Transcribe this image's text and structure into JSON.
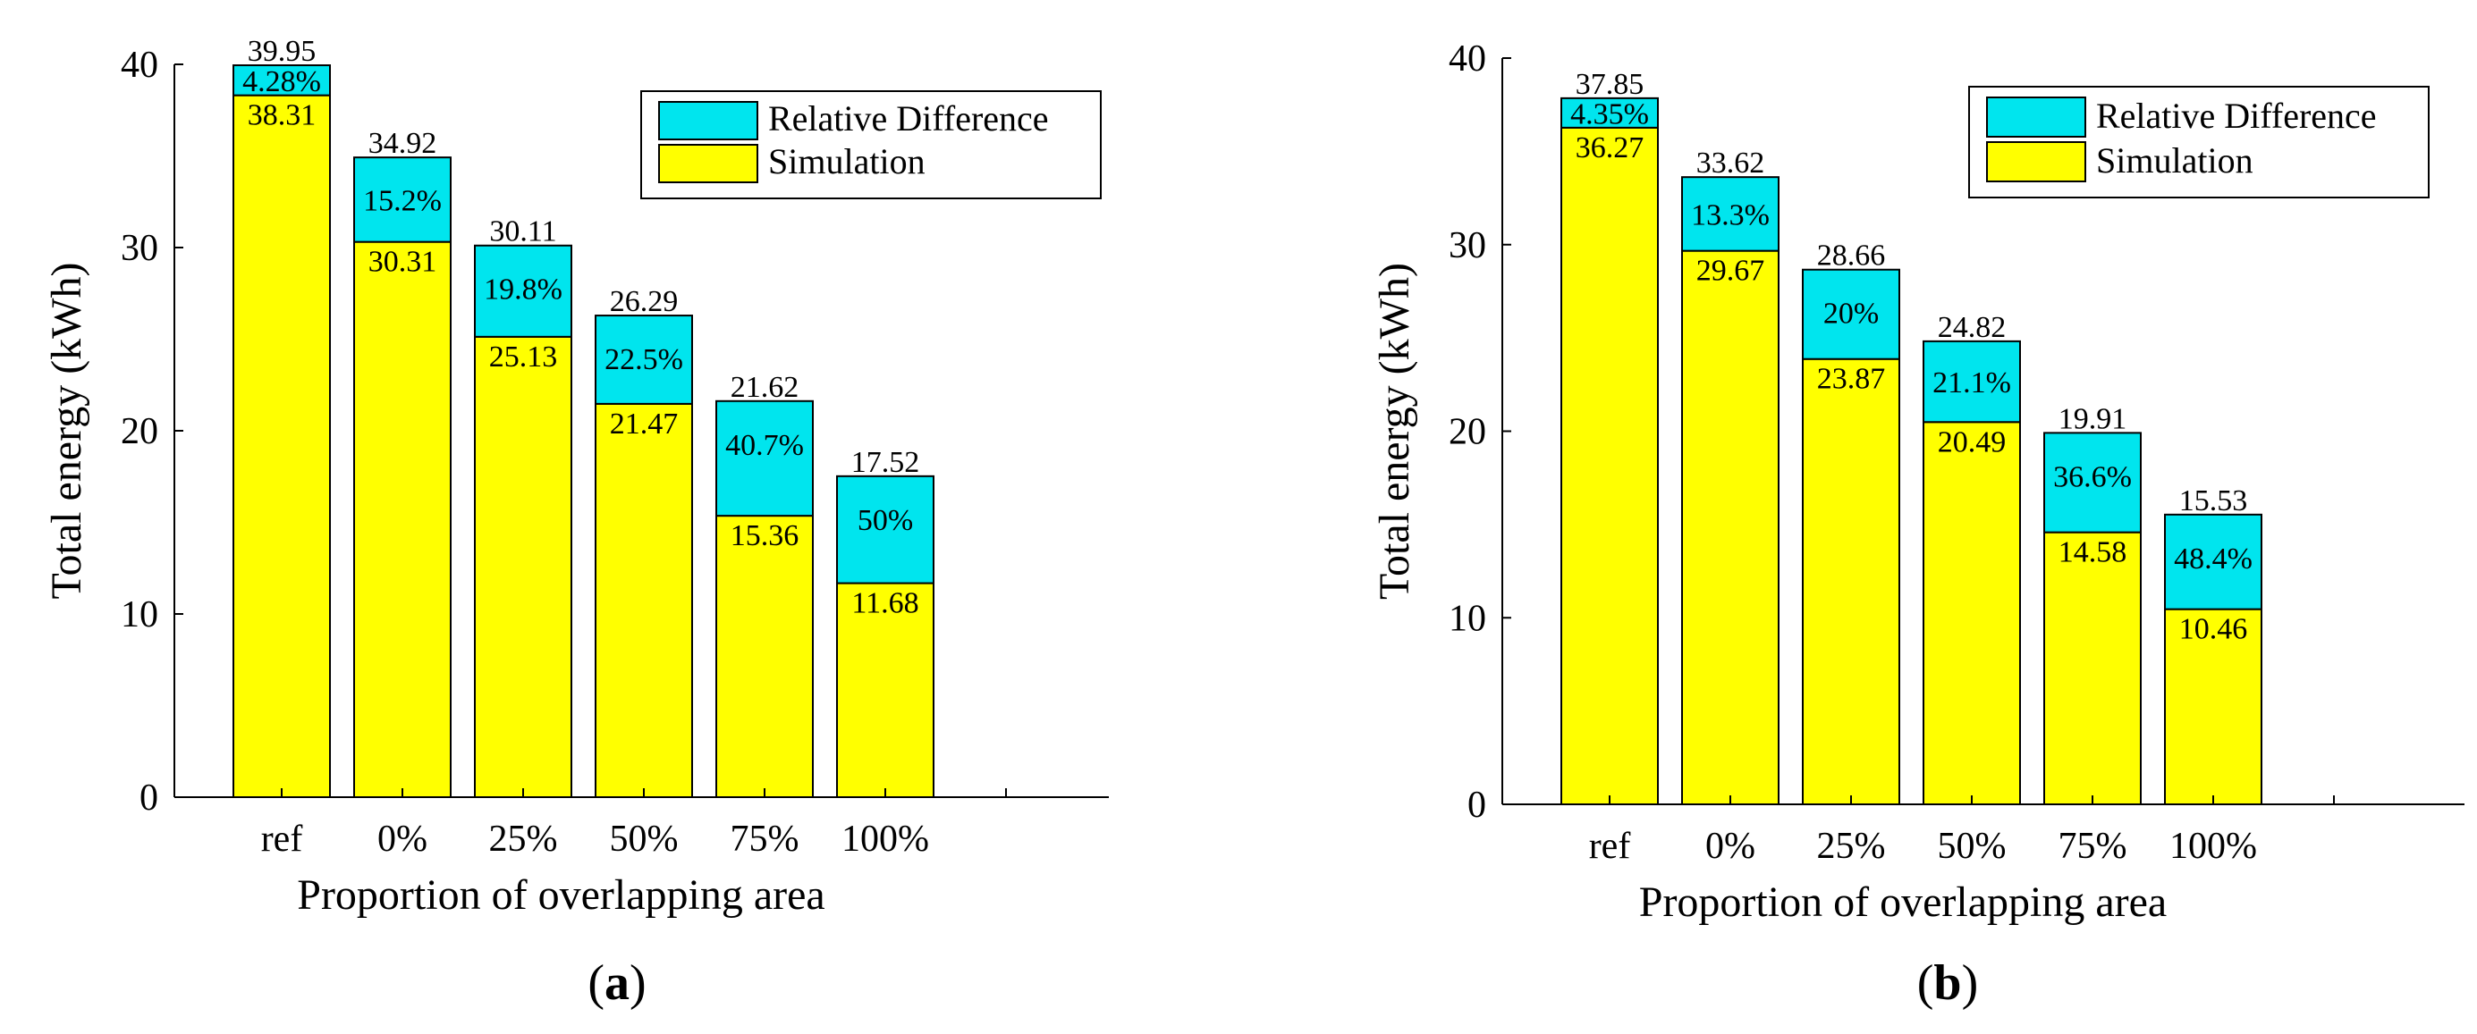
{
  "chart_data": [
    {
      "type": "bar",
      "stacked": true,
      "panel_label": "a",
      "categories": [
        "ref",
        "0%",
        "25%",
        "50%",
        "75%",
        "100%"
      ],
      "series": [
        {
          "name": "Simulation",
          "color": "#ffff00",
          "values": [
            38.31,
            30.31,
            25.13,
            21.47,
            15.36,
            11.68
          ]
        },
        {
          "name": "Relative Difference",
          "color": "#00e5ee",
          "values": [
            1.64,
            4.61,
            4.98,
            4.82,
            6.26,
            5.84
          ],
          "labels": [
            "4.28%",
            "15.2%",
            "19.8%",
            "22.5%",
            "40.7%",
            "50%"
          ]
        }
      ],
      "totals": [
        "39.95",
        "34.92",
        "30.11",
        "26.29",
        "21.62",
        "17.52"
      ],
      "simulation_labels": [
        "38.31",
        "30.31",
        "25.13",
        "21.47",
        "15.36",
        "11.68"
      ],
      "xlabel": "Proportion of overlapping area",
      "ylabel": "Total energy (kWh)",
      "ylim": [
        0,
        40
      ],
      "yticks": [
        "0",
        "10",
        "20",
        "30",
        "40"
      ],
      "legend": [
        "Relative Difference",
        "Simulation"
      ],
      "legend_position": "top-right",
      "grid": false
    },
    {
      "type": "bar",
      "stacked": true,
      "panel_label": "b",
      "categories": [
        "ref",
        "0%",
        "25%",
        "50%",
        "75%",
        "100%"
      ],
      "series": [
        {
          "name": "Simulation",
          "color": "#ffff00",
          "values": [
            36.27,
            29.67,
            23.87,
            20.49,
            14.58,
            10.46
          ]
        },
        {
          "name": "Relative Difference",
          "color": "#00e5ee",
          "values": [
            1.58,
            3.95,
            4.79,
            4.33,
            5.33,
            5.07
          ],
          "labels": [
            "4.35%",
            "13.3%",
            "20%",
            "21.1%",
            "36.6%",
            "48.4%"
          ]
        }
      ],
      "totals": [
        "37.85",
        "33.62",
        "28.66",
        "24.82",
        "19.91",
        "15.53"
      ],
      "simulation_labels": [
        "36.27",
        "29.67",
        "23.87",
        "20.49",
        "14.58",
        "10.46"
      ],
      "xlabel": "Proportion of overlapping area",
      "ylabel": "Total energy (kWh)",
      "ylim": [
        0,
        40
      ],
      "yticks": [
        "0",
        "10",
        "20",
        "30",
        "40"
      ],
      "legend": [
        "Relative Difference",
        "Simulation"
      ],
      "legend_position": "top-right",
      "grid": false
    }
  ]
}
